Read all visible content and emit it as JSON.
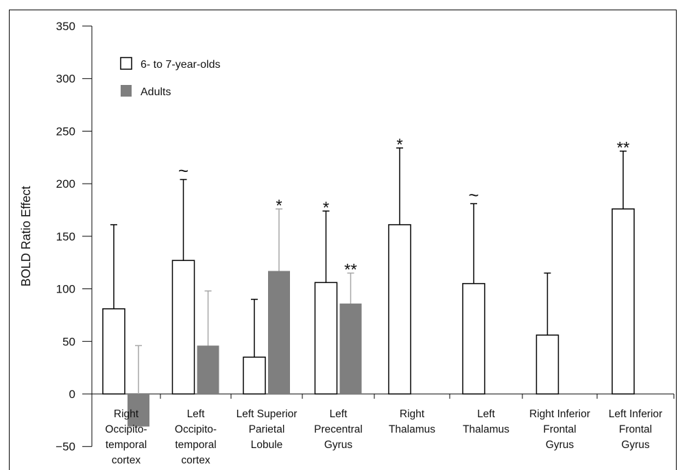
{
  "chart_data": {
    "type": "bar",
    "title": "",
    "xlabel": "",
    "ylabel": "BOLD Ratio Effect",
    "ylim": [
      -50,
      350
    ],
    "yticks": [
      -50,
      0,
      50,
      100,
      150,
      200,
      250,
      300,
      350
    ],
    "grid": false,
    "legend_position": "top-left",
    "categories": [
      [
        "Right",
        "Occipito-",
        "temporal",
        "cortex"
      ],
      [
        "Left",
        "Occipito-",
        "temporal",
        "cortex"
      ],
      [
        "Left Superior",
        "Parietal",
        "Lobule"
      ],
      [
        "Left",
        "Precentral",
        "Gyrus"
      ],
      [
        "Right",
        "Thalamus"
      ],
      [
        "Left",
        "Thalamus"
      ],
      [
        "Right Inferior",
        "Frontal",
        "Gyrus"
      ],
      [
        "Left Inferior",
        "Frontal",
        "Gyrus"
      ]
    ],
    "series": [
      {
        "name": "6- to 7-year-olds",
        "fill": "#ffffff",
        "error_color": "#000000",
        "values": [
          81,
          127,
          35,
          106,
          161,
          105,
          56,
          176
        ],
        "error_upper": [
          161,
          204,
          90,
          174,
          234,
          181,
          115,
          231
        ],
        "markers": [
          "",
          "~",
          "",
          "*",
          "*",
          "~",
          "",
          "**"
        ]
      },
      {
        "name": "Adults",
        "fill": "#7f7f7f",
        "error_color": "#a6a6a6",
        "values": [
          -31,
          46,
          117,
          86,
          null,
          null,
          null,
          null
        ],
        "error_upper": [
          46,
          98,
          176,
          115,
          null,
          null,
          null,
          null
        ],
        "markers": [
          "",
          "",
          "*",
          "**",
          "",
          "",
          "",
          ""
        ]
      }
    ]
  }
}
